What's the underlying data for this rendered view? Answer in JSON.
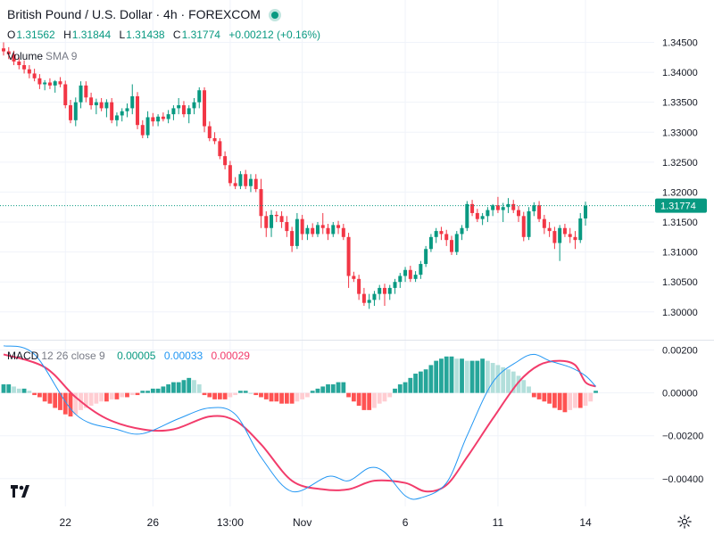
{
  "header": {
    "title": "British Pound / U.S. Dollar · 4h · FOREXCOM",
    "ohlc": {
      "o_label": "O",
      "o_value": "1.31562",
      "h_label": "H",
      "h_value": "1.31844",
      "l_label": "L",
      "l_value": "1.31438",
      "c_label": "C",
      "c_value": "1.31774",
      "change": "+0.00212 (+0.16%)"
    },
    "volume_label": "Volume",
    "volume_sma": "SMA 9",
    "macd_label": "MACD",
    "macd_params": "12 26 close 9",
    "macd_hist_value": "0.00005",
    "macd_value": "0.00033",
    "macd_signal_value": "0.00029"
  },
  "colors": {
    "up": "#089981",
    "down": "#f23645",
    "macd_line": "#2196f3",
    "signal_line": "#f23c6b",
    "hist_up_strong": "#26a69a",
    "hist_up_weak": "#b2dfdb",
    "hist_down_strong": "#ff5252",
    "hist_down_weak": "#ffcdd2",
    "price_badge": "#089981"
  },
  "price_badge": "1.31774",
  "chart_data": [
    {
      "type": "candlestick",
      "title": "British Pound / U.S. Dollar · 4h · FOREXCOM",
      "ylim": [
        1.2955,
        1.3485
      ],
      "y_ticks": [
        "1.34500",
        "1.34000",
        "1.33500",
        "1.33000",
        "1.32500",
        "1.32000",
        "1.31500",
        "1.31000",
        "1.30500",
        "1.30000"
      ],
      "y_tick_values": [
        1.345,
        1.34,
        1.335,
        1.33,
        1.325,
        1.32,
        1.315,
        1.31,
        1.305,
        1.3
      ],
      "x_ticks": [
        "22",
        "26",
        "13:00",
        "Nov",
        "6",
        "11",
        "14"
      ],
      "x_tick_index": [
        12,
        29,
        44,
        58,
        78,
        96,
        113
      ],
      "last_close": 1.31774,
      "candles": [
        [
          1.344,
          1.345,
          1.3428,
          1.3435
        ],
        [
          1.3435,
          1.3442,
          1.3422,
          1.343
        ],
        [
          1.343,
          1.3436,
          1.3412,
          1.3418
        ],
        [
          1.3418,
          1.3425,
          1.3405,
          1.3412
        ],
        [
          1.3412,
          1.342,
          1.3398,
          1.3405
        ],
        [
          1.3405,
          1.3412,
          1.339,
          1.3398
        ],
        [
          1.3398,
          1.3406,
          1.3385,
          1.339
        ],
        [
          1.339,
          1.3397,
          1.3372,
          1.338
        ],
        [
          1.338,
          1.3387,
          1.337,
          1.3383
        ],
        [
          1.3383,
          1.339,
          1.3372,
          1.3378
        ],
        [
          1.3378,
          1.3387,
          1.3366,
          1.3385
        ],
        [
          1.3385,
          1.3392,
          1.3375,
          1.338
        ],
        [
          1.338,
          1.3386,
          1.334,
          1.3345
        ],
        [
          1.3345,
          1.3354,
          1.3315,
          1.332
        ],
        [
          1.332,
          1.3358,
          1.331,
          1.335
        ],
        [
          1.335,
          1.3385,
          1.334,
          1.3378
        ],
        [
          1.3378,
          1.3385,
          1.335,
          1.3358
        ],
        [
          1.3358,
          1.3366,
          1.3338,
          1.3345
        ],
        [
          1.3345,
          1.3356,
          1.333,
          1.335
        ],
        [
          1.335,
          1.3357,
          1.3335,
          1.334
        ],
        [
          1.334,
          1.3355,
          1.3325,
          1.335
        ],
        [
          1.335,
          1.3357,
          1.3315,
          1.332
        ],
        [
          1.332,
          1.3333,
          1.331,
          1.3328
        ],
        [
          1.3328,
          1.334,
          1.3318,
          1.3335
        ],
        [
          1.3335,
          1.3348,
          1.3325,
          1.334
        ],
        [
          1.334,
          1.338,
          1.333,
          1.336
        ],
        [
          1.336,
          1.3367,
          1.3305,
          1.3312
        ],
        [
          1.3312,
          1.332,
          1.329,
          1.3295
        ],
        [
          1.3295,
          1.3335,
          1.329,
          1.3325
        ],
        [
          1.3325,
          1.3332,
          1.331,
          1.3318
        ],
        [
          1.3318,
          1.333,
          1.331,
          1.3326
        ],
        [
          1.3326,
          1.3333,
          1.3318,
          1.3322
        ],
        [
          1.3322,
          1.3337,
          1.3315,
          1.333
        ],
        [
          1.333,
          1.3345,
          1.332,
          1.334
        ],
        [
          1.334,
          1.3357,
          1.333,
          1.3345
        ],
        [
          1.3345,
          1.3352,
          1.3325,
          1.333
        ],
        [
          1.333,
          1.3345,
          1.3315,
          1.334
        ],
        [
          1.334,
          1.3357,
          1.333,
          1.335
        ],
        [
          1.335,
          1.3375,
          1.334,
          1.337
        ],
        [
          1.337,
          1.3375,
          1.33,
          1.331
        ],
        [
          1.331,
          1.3318,
          1.3285,
          1.329
        ],
        [
          1.329,
          1.33,
          1.328,
          1.3285
        ],
        [
          1.3285,
          1.329,
          1.3255,
          1.326
        ],
        [
          1.326,
          1.3268,
          1.3238,
          1.3245
        ],
        [
          1.3245,
          1.3252,
          1.321,
          1.3215
        ],
        [
          1.3215,
          1.3225,
          1.3205,
          1.321
        ],
        [
          1.321,
          1.3235,
          1.3205,
          1.323
        ],
        [
          1.323,
          1.3237,
          1.3205,
          1.321
        ],
        [
          1.321,
          1.323,
          1.32,
          1.3222
        ],
        [
          1.3222,
          1.323,
          1.32,
          1.3205
        ],
        [
          1.3205,
          1.3222,
          1.314,
          1.316
        ],
        [
          1.316,
          1.3168,
          1.3125,
          1.314
        ],
        [
          1.314,
          1.317,
          1.3125,
          1.3162
        ],
        [
          1.3162,
          1.3168,
          1.315,
          1.316
        ],
        [
          1.316,
          1.3168,
          1.314,
          1.315
        ],
        [
          1.315,
          1.316,
          1.3125,
          1.3135
        ],
        [
          1.3135,
          1.3142,
          1.31,
          1.311
        ],
        [
          1.311,
          1.3165,
          1.3105,
          1.3155
        ],
        [
          1.3155,
          1.3162,
          1.312,
          1.313
        ],
        [
          1.313,
          1.3145,
          1.312,
          1.314
        ],
        [
          1.314,
          1.3148,
          1.3125,
          1.313
        ],
        [
          1.313,
          1.315,
          1.3125,
          1.3145
        ],
        [
          1.3145,
          1.3165,
          1.313,
          1.314
        ],
        [
          1.314,
          1.3147,
          1.312,
          1.313
        ],
        [
          1.313,
          1.315,
          1.3125,
          1.3145
        ],
        [
          1.3145,
          1.3152,
          1.313,
          1.314
        ],
        [
          1.314,
          1.3147,
          1.312,
          1.3125
        ],
        [
          1.3125,
          1.3132,
          1.304,
          1.306
        ],
        [
          1.306,
          1.3067,
          1.305,
          1.3055
        ],
        [
          1.3055,
          1.3062,
          1.302,
          1.303
        ],
        [
          1.303,
          1.304,
          1.301,
          1.3015
        ],
        [
          1.3015,
          1.303,
          1.3005,
          1.302
        ],
        [
          1.302,
          1.3035,
          1.301,
          1.303
        ],
        [
          1.303,
          1.3045,
          1.302,
          1.304
        ],
        [
          1.304,
          1.3047,
          1.301,
          1.303
        ],
        [
          1.303,
          1.3045,
          1.302,
          1.304
        ],
        [
          1.304,
          1.3055,
          1.303,
          1.305
        ],
        [
          1.305,
          1.3065,
          1.304,
          1.306
        ],
        [
          1.306,
          1.3075,
          1.305,
          1.307
        ],
        [
          1.307,
          1.3077,
          1.305,
          1.3055
        ],
        [
          1.3055,
          1.3068,
          1.305,
          1.3062
        ],
        [
          1.3062,
          1.3085,
          1.3055,
          1.308
        ],
        [
          1.308,
          1.311,
          1.3075,
          1.3105
        ],
        [
          1.3105,
          1.313,
          1.31,
          1.3125
        ],
        [
          1.3125,
          1.314,
          1.3115,
          1.3135
        ],
        [
          1.3135,
          1.3142,
          1.312,
          1.313
        ],
        [
          1.313,
          1.3137,
          1.311,
          1.312
        ],
        [
          1.312,
          1.3127,
          1.3095,
          1.31
        ],
        [
          1.31,
          1.3135,
          1.3095,
          1.313
        ],
        [
          1.313,
          1.3145,
          1.312,
          1.314
        ],
        [
          1.314,
          1.3185,
          1.3135,
          1.318
        ],
        [
          1.318,
          1.3187,
          1.316,
          1.3165
        ],
        [
          1.3165,
          1.3172,
          1.315,
          1.3155
        ],
        [
          1.3155,
          1.3165,
          1.3145,
          1.316
        ],
        [
          1.316,
          1.3175,
          1.315,
          1.317
        ],
        [
          1.317,
          1.318,
          1.316,
          1.3178
        ],
        [
          1.3178,
          1.3192,
          1.3165,
          1.317
        ],
        [
          1.317,
          1.3182,
          1.315,
          1.3175
        ],
        [
          1.3175,
          1.319,
          1.3165,
          1.318
        ],
        [
          1.318,
          1.3187,
          1.3165,
          1.317
        ],
        [
          1.317,
          1.3177,
          1.315,
          1.316
        ],
        [
          1.316,
          1.3167,
          1.3118,
          1.3125
        ],
        [
          1.3125,
          1.3175,
          1.312,
          1.3168
        ],
        [
          1.3168,
          1.3183,
          1.316,
          1.3178
        ],
        [
          1.3178,
          1.3185,
          1.315,
          1.3155
        ],
        [
          1.3155,
          1.3162,
          1.313,
          1.314
        ],
        [
          1.314,
          1.315,
          1.3125,
          1.3135
        ],
        [
          1.3135,
          1.3142,
          1.3105,
          1.3115
        ],
        [
          1.3115,
          1.3145,
          1.3085,
          1.314
        ],
        [
          1.314,
          1.3147,
          1.3125,
          1.313
        ],
        [
          1.313,
          1.314,
          1.3115,
          1.3125
        ],
        [
          1.3125,
          1.3135,
          1.3105,
          1.312
        ],
        [
          1.312,
          1.3165,
          1.3115,
          1.3156
        ],
        [
          1.3156,
          1.3184,
          1.3144,
          1.3177
        ]
      ]
    },
    {
      "type": "macd",
      "title": "MACD 12 26 close 9",
      "ylim": [
        -0.0053,
        0.0024
      ],
      "y_ticks": [
        "0.00200",
        "0.00000",
        "−0.00200",
        "−0.00400"
      ],
      "y_tick_values": [
        0.002,
        0.0,
        -0.002,
        -0.004
      ],
      "macd_line_keypoints": [
        [
          0,
          0.0022
        ],
        [
          6,
          0.0018
        ],
        [
          14,
          -0.001
        ],
        [
          22,
          -0.0017
        ],
        [
          27,
          -0.0019
        ],
        [
          34,
          -0.0012
        ],
        [
          40,
          -0.0007
        ],
        [
          45,
          -0.001
        ],
        [
          50,
          -0.003
        ],
        [
          56,
          -0.0046
        ],
        [
          63,
          -0.0039
        ],
        [
          67,
          -0.0041
        ],
        [
          71,
          -0.0035
        ],
        [
          74,
          -0.0037
        ],
        [
          78,
          -0.0048
        ],
        [
          81,
          -0.0049
        ],
        [
          86,
          -0.0042
        ],
        [
          90,
          -0.002
        ],
        [
          95,
          0.0005
        ],
        [
          100,
          0.0015
        ],
        [
          103,
          0.0018
        ],
        [
          106,
          0.0015
        ],
        [
          110,
          0.0012
        ],
        [
          113,
          0.0008
        ],
        [
          115,
          0.0003
        ]
      ],
      "signal_line_keypoints": [
        [
          0,
          0.0018
        ],
        [
          8,
          0.0012
        ],
        [
          14,
          -0.0002
        ],
        [
          20,
          -0.0012
        ],
        [
          27,
          -0.0017
        ],
        [
          33,
          -0.0017
        ],
        [
          40,
          -0.0011
        ],
        [
          45,
          -0.0013
        ],
        [
          50,
          -0.0024
        ],
        [
          56,
          -0.0041
        ],
        [
          62,
          -0.0045
        ],
        [
          67,
          -0.0045
        ],
        [
          72,
          -0.0041
        ],
        [
          78,
          -0.0042
        ],
        [
          82,
          -0.0046
        ],
        [
          86,
          -0.0043
        ],
        [
          90,
          -0.003
        ],
        [
          95,
          -0.0012
        ],
        [
          100,
          0.0005
        ],
        [
          104,
          0.0013
        ],
        [
          108,
          0.0015
        ],
        [
          111,
          0.0013
        ],
        [
          113,
          0.0005
        ],
        [
          115,
          0.0003
        ]
      ],
      "histogram": [
        0.0004,
        0.0004,
        0.0003,
        0.0002,
        0.0002,
        0.0001,
        -0.0001,
        -0.0002,
        -0.0004,
        -0.0005,
        -0.0007,
        -0.0008,
        -0.001,
        -0.0011,
        -0.001,
        -0.0008,
        -0.0007,
        -0.0006,
        -0.0005,
        -0.0004,
        -0.0004,
        -0.0003,
        -0.0003,
        -0.0002,
        -0.0002,
        -0.0001,
        -0.0001,
        0.0001,
        0.0001,
        0.0002,
        0.0002,
        0.0003,
        0.0004,
        0.0005,
        0.0005,
        0.0006,
        0.0007,
        0.0006,
        0.0004,
        -0.0001,
        -0.0002,
        -0.0003,
        -0.0003,
        -0.0003,
        -0.0002,
        -0.0001,
        0.0001,
        0.0001,
        0.0,
        -0.0001,
        -0.0002,
        -0.0003,
        -0.0004,
        -0.0004,
        -0.0005,
        -0.0005,
        -0.0005,
        -0.0004,
        -0.0003,
        -0.0002,
        0.0001,
        0.0002,
        0.0003,
        0.0004,
        0.0004,
        0.0005,
        0.0005,
        -0.0002,
        -0.0004,
        -0.0006,
        -0.0008,
        -0.0008,
        -0.0007,
        -0.0005,
        -0.0004,
        -0.0002,
        0.0002,
        0.0004,
        0.0005,
        0.0007,
        0.0009,
        0.001,
        0.0011,
        0.0013,
        0.0015,
        0.0016,
        0.0017,
        0.0017,
        0.0016,
        0.0016,
        0.0015,
        0.0015,
        0.0015,
        0.0016,
        0.0015,
        0.0014,
        0.0013,
        0.0012,
        0.0011,
        0.001,
        0.0008,
        0.0006,
        0.0003,
        -0.0002,
        -0.0003,
        -0.0004,
        -0.0005,
        -0.0007,
        -0.0008,
        -0.0009,
        -0.0008,
        -0.0007,
        -0.0007,
        -0.0006,
        -0.0004,
        0.0001
      ]
    }
  ]
}
